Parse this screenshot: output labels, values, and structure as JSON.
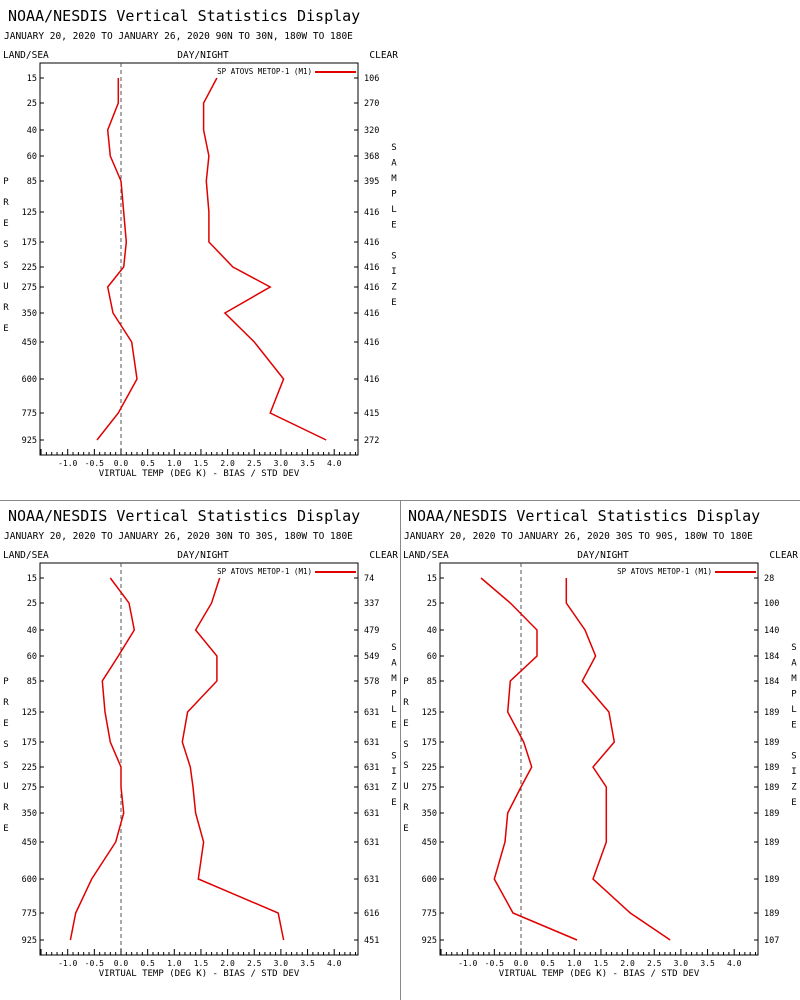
{
  "style": {
    "series_color": "#e00000",
    "axis_color": "#000000",
    "zero_line_color": "#555555",
    "background": "#ffffff"
  },
  "chart_data": [
    {
      "type": "line",
      "title": "NOAA/NESDIS Vertical Statistics Display",
      "subtitle": "JANUARY 20, 2020 TO JANUARY 26, 2020 90N TO 30N, 180W TO 180E",
      "header_left": "LAND/SEA",
      "header_center": "DAY/NIGHT",
      "header_right": "CLEAR",
      "xlabel": "VIRTUAL TEMP (DEG K) - BIAS / STD DEV",
      "ylabel": "PRESSURE",
      "right_label": "SAMPLE SIZE",
      "xlim": [
        -1.5,
        4.5
      ],
      "x_ticks": [
        "-1.0",
        "-0.5",
        "0.0",
        "0.5",
        "1.0",
        "1.5",
        "2.0",
        "2.5",
        "3.0",
        "3.5",
        "4.0"
      ],
      "pressure_levels": [
        "15",
        "25",
        "40",
        "60",
        "85",
        "125",
        "175",
        "225",
        "275",
        "350",
        "450",
        "600",
        "775",
        "925"
      ],
      "sample_size": [
        "106",
        "270",
        "320",
        "368",
        "395",
        "416",
        "416",
        "416",
        "416",
        "416",
        "416",
        "416",
        "415",
        "272"
      ],
      "legend": "SP ATOVS METOP-1 (M1)",
      "series": [
        {
          "name": "bias",
          "values": [
            -0.05,
            -0.05,
            -0.25,
            -0.2,
            0.0,
            0.05,
            0.1,
            0.05,
            -0.25,
            -0.15,
            0.2,
            0.3,
            -0.05,
            -0.45
          ]
        },
        {
          "name": "std_dev",
          "values": [
            1.8,
            1.55,
            1.55,
            1.65,
            1.6,
            1.65,
            1.65,
            2.1,
            2.8,
            1.95,
            2.5,
            3.05,
            2.8,
            3.85
          ]
        }
      ]
    },
    {
      "type": "line",
      "title": "NOAA/NESDIS Vertical Statistics Display",
      "subtitle": "JANUARY 20, 2020 TO JANUARY 26, 2020 30N TO 30S, 180W TO 180E",
      "header_left": "LAND/SEA",
      "header_center": "DAY/NIGHT",
      "header_right": "CLEAR",
      "xlabel": "VIRTUAL TEMP (DEG K) - BIAS / STD DEV",
      "ylabel": "PRESSURE",
      "right_label": "SAMPLE SIZE",
      "xlim": [
        -1.5,
        4.5
      ],
      "x_ticks": [
        "-1.0",
        "-0.5",
        "0.0",
        "0.5",
        "1.0",
        "1.5",
        "2.0",
        "2.5",
        "3.0",
        "3.5",
        "4.0"
      ],
      "pressure_levels": [
        "15",
        "25",
        "40",
        "60",
        "85",
        "125",
        "175",
        "225",
        "275",
        "350",
        "450",
        "600",
        "775",
        "925"
      ],
      "sample_size": [
        "74",
        "337",
        "479",
        "549",
        "578",
        "631",
        "631",
        "631",
        "631",
        "631",
        "631",
        "631",
        "616",
        "451"
      ],
      "legend": "SP ATOVS METOP-1 (M1)",
      "series": [
        {
          "name": "bias",
          "values": [
            -0.2,
            0.15,
            0.25,
            -0.05,
            -0.35,
            -0.3,
            -0.2,
            0.0,
            0.0,
            0.05,
            -0.1,
            -0.55,
            -0.85,
            -0.95
          ]
        },
        {
          "name": "std_dev",
          "values": [
            1.85,
            1.7,
            1.4,
            1.8,
            1.8,
            1.25,
            1.15,
            1.3,
            1.35,
            1.4,
            1.55,
            1.45,
            2.95,
            3.05
          ]
        }
      ]
    },
    {
      "type": "line",
      "title": "NOAA/NESDIS Vertical Statistics Display",
      "subtitle": "JANUARY 20, 2020 TO JANUARY 26, 2020 30S TO 90S, 180W TO 180E",
      "header_left": "LAND/SEA",
      "header_center": "DAY/NIGHT",
      "header_right": "CLEAR",
      "xlabel": "VIRTUAL TEMP (DEG K) - BIAS / STD DEV",
      "ylabel": "PRESSURE",
      "right_label": "SAMPLE SIZE",
      "xlim": [
        -1.5,
        4.5
      ],
      "x_ticks": [
        "-1.0",
        "-0.5",
        "0.0",
        "0.5",
        "1.0",
        "1.5",
        "2.0",
        "2.5",
        "3.0",
        "3.5",
        "4.0"
      ],
      "pressure_levels": [
        "15",
        "25",
        "40",
        "60",
        "85",
        "125",
        "175",
        "225",
        "275",
        "350",
        "450",
        "600",
        "775",
        "925"
      ],
      "sample_size": [
        "28",
        "100",
        "140",
        "184",
        "184",
        "189",
        "189",
        "189",
        "189",
        "189",
        "189",
        "189",
        "189",
        "107"
      ],
      "legend": "SP ATOVS METOP-1 (M1)",
      "series": [
        {
          "name": "bias",
          "values": [
            -0.75,
            -0.2,
            0.3,
            0.3,
            -0.2,
            -0.25,
            0.05,
            0.2,
            0.0,
            -0.25,
            -0.3,
            -0.5,
            -0.15,
            1.05
          ]
        },
        {
          "name": "std_dev",
          "values": [
            0.85,
            0.85,
            1.2,
            1.4,
            1.15,
            1.65,
            1.75,
            1.35,
            1.6,
            1.6,
            1.6,
            1.35,
            2.05,
            2.8
          ]
        }
      ]
    }
  ]
}
